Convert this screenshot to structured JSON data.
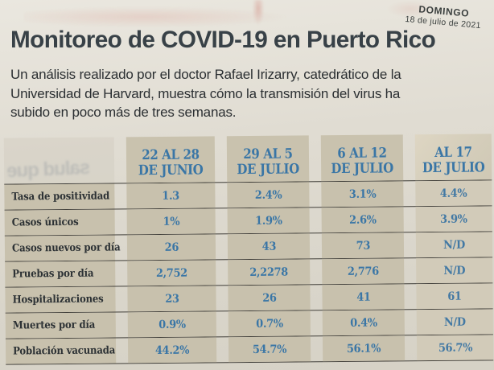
{
  "page": {
    "dateline_day": "DOMINGO",
    "dateline_date": "18 de julio de 2021",
    "title": "Monitoreo de COVID-19 en Puerto Rico",
    "intro_lines": [
      "Un análisis realizado por el doctor Rafael Irizarry, catedrático de la",
      "Universidad de Harvard, muestra cómo la transmisión del virus ha",
      "subido en poco más de tres semanas."
    ],
    "ghost_text": "salud que"
  },
  "table": {
    "headers": [
      {
        "line1": "22 AL 28",
        "line2": "DE JUNIO"
      },
      {
        "line1": "29 AL 5",
        "line2": "DE JULIO"
      },
      {
        "line1": "6 AL 12",
        "line2": "DE JULIO"
      },
      {
        "line1": "AL 17",
        "line2": "DE JULIO"
      }
    ]
  },
  "chart_data": {
    "type": "table",
    "title": "Monitoreo de COVID-19 en Puerto Rico",
    "columns": [
      "22 AL 28 DE JUNIO",
      "29 AL 5 DE JULIO",
      "6 AL 12 DE JULIO",
      "AL 17 DE JULIO"
    ],
    "rows": [
      {
        "label": "Tasa de positividad",
        "values": [
          "1.3",
          "2.4%",
          "3.1%",
          "4.4%"
        ]
      },
      {
        "label": "Casos únicos",
        "values": [
          "1%",
          "1.9%",
          "2.6%",
          "3.9%"
        ]
      },
      {
        "label": "Casos nuevos por día",
        "values": [
          "26",
          "43",
          "73",
          "N/D"
        ]
      },
      {
        "label": "Pruebas por día",
        "values": [
          "2,752",
          "2,2278",
          "2,776",
          "N/D"
        ]
      },
      {
        "label": "Hospitalizaciones",
        "values": [
          "23",
          "26",
          "41",
          "61"
        ]
      },
      {
        "label": "Muertes por día",
        "values": [
          "0.9%",
          "0.7%",
          "0.4%",
          "N/D"
        ]
      },
      {
        "label": "Población vacunada",
        "values": [
          "44.2%",
          "54.7%",
          "56.1%",
          "56.7%"
        ]
      }
    ]
  },
  "colors": {
    "accent_blue": "#3a76a6",
    "tan_block": "#c8c1ad",
    "newsprint": "#ddd9cf",
    "rule": "#413f3a",
    "headline_text": "#384147"
  }
}
